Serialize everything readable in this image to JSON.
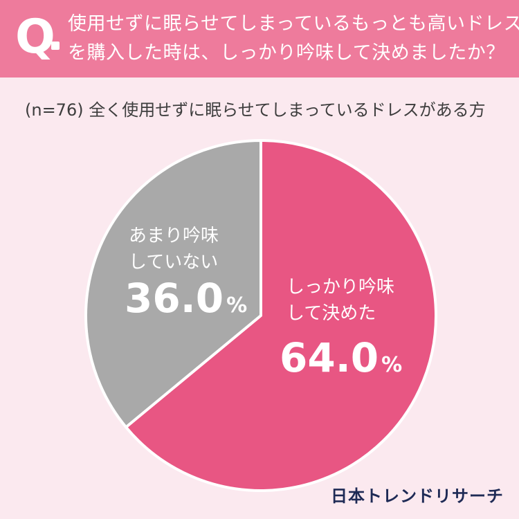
{
  "header": {
    "q_label": "Q",
    "question_line1": "使用せずに眠らせてしまっているもっとも高いドレス",
    "question_line2": "を購入した時は、しっかり吟味して決めましたか？"
  },
  "subtitle": "(n=76) 全く使用せずに眠らせてしまっているドレスがある方",
  "chart_data": {
    "type": "pie",
    "n": 76,
    "slices": [
      {
        "label_line1": "しっかり吟味",
        "label_line2": "して決めた",
        "value": 64.0,
        "value_text": "64.0",
        "unit": "%",
        "color": "#e85683"
      },
      {
        "label_line1": "あまり吟味",
        "label_line2": "していない",
        "value": 36.0,
        "value_text": "36.0",
        "unit": "%",
        "color": "#a9a9a9"
      }
    ],
    "start": "12 o'clock",
    "direction": "clockwise"
  },
  "brand": "日本トレンドリサーチ",
  "colors": {
    "banner": "#ee7b9c",
    "background": "#fbe9ef",
    "text_dark": "#3d3d3d",
    "brand": "#1e2a55"
  }
}
